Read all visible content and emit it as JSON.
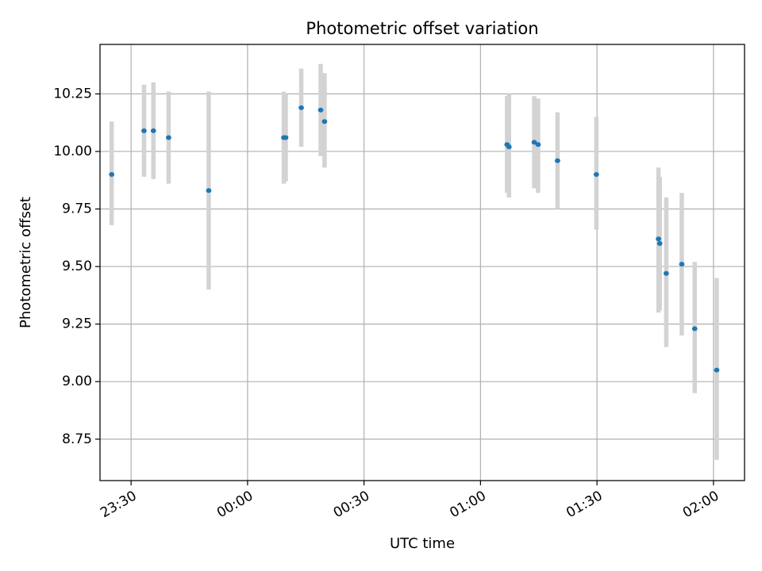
{
  "chart_data": {
    "type": "scatter",
    "title": "Photometric offset variation",
    "xlabel": "UTC time",
    "ylabel": "Photometric offset",
    "x_range": [
      "23:22",
      "02:08"
    ],
    "ylim": [
      8.57,
      10.465
    ],
    "grid": true,
    "x_ticks": [
      "23:30",
      "00:00",
      "00:30",
      "01:00",
      "01:30",
      "02:00"
    ],
    "y_ticks": [
      "8.75",
      "9.00",
      "9.25",
      "9.50",
      "9.75",
      "10.00",
      "10.25"
    ],
    "point_color": "#1f77b4",
    "errorbar_color": "#d3d3d3",
    "points": [
      {
        "time": "23:25:00",
        "y": 9.9,
        "low": 9.68,
        "high": 10.13
      },
      {
        "time": "23:33:20",
        "y": 10.09,
        "low": 9.89,
        "high": 10.29
      },
      {
        "time": "23:35:45",
        "y": 10.09,
        "low": 9.88,
        "high": 10.3
      },
      {
        "time": "23:39:40",
        "y": 10.06,
        "low": 9.86,
        "high": 10.26
      },
      {
        "time": "23:50:00",
        "y": 9.83,
        "low": 9.4,
        "high": 10.26
      },
      {
        "time": "00:09:20",
        "y": 10.06,
        "low": 9.86,
        "high": 10.26
      },
      {
        "time": "00:09:50",
        "y": 10.06,
        "low": 9.87,
        "high": 10.25
      },
      {
        "time": "00:13:50",
        "y": 10.19,
        "low": 10.02,
        "high": 10.36
      },
      {
        "time": "00:18:50",
        "y": 10.18,
        "low": 9.98,
        "high": 10.38
      },
      {
        "time": "00:19:50",
        "y": 10.13,
        "low": 9.93,
        "high": 10.34
      },
      {
        "time": "01:06:50",
        "y": 10.03,
        "low": 9.82,
        "high": 10.24
      },
      {
        "time": "01:07:20",
        "y": 10.02,
        "low": 9.8,
        "high": 10.25
      },
      {
        "time": "01:13:50",
        "y": 10.04,
        "low": 9.84,
        "high": 10.24
      },
      {
        "time": "01:14:50",
        "y": 10.03,
        "low": 9.82,
        "high": 10.23
      },
      {
        "time": "01:19:50",
        "y": 9.96,
        "low": 9.75,
        "high": 10.17
      },
      {
        "time": "01:29:50",
        "y": 9.9,
        "low": 9.66,
        "high": 10.15
      },
      {
        "time": "01:45:50",
        "y": 9.62,
        "low": 9.3,
        "high": 9.93
      },
      {
        "time": "01:46:10",
        "y": 9.6,
        "low": 9.31,
        "high": 9.89
      },
      {
        "time": "01:47:50",
        "y": 9.47,
        "low": 9.15,
        "high": 9.8
      },
      {
        "time": "01:51:50",
        "y": 9.51,
        "low": 9.2,
        "high": 9.82
      },
      {
        "time": "01:55:10",
        "y": 9.23,
        "low": 8.95,
        "high": 9.52
      },
      {
        "time": "02:00:50",
        "y": 9.05,
        "low": 8.66,
        "high": 9.45
      }
    ]
  }
}
